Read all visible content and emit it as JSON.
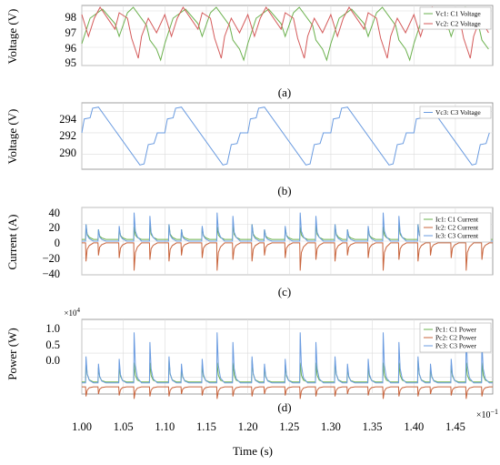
{
  "figure": {
    "xlabel": "Time (s)",
    "x_ticks": [
      "1.00",
      "1.05",
      "1.10",
      "1.15",
      "1.20",
      "1.25",
      "1.30",
      "1.35",
      "1.40",
      "1.45"
    ],
    "x_exponent": "×10",
    "x_exponent_power": "−1"
  },
  "chart_data": [
    {
      "type": "line",
      "panel": "(a)",
      "ylabel": "Voltage (V)",
      "ylim": [
        95,
        98.3
      ],
      "yticks": [
        "98",
        "97",
        "96",
        "95"
      ],
      "xlim": [
        0.1,
        0.1495
      ],
      "grid": true,
      "legend_position": "top-right",
      "series": [
        {
          "name": "Vc1: C1 Voltage",
          "color": "#6ab04c",
          "period": 0.01,
          "peaks_at": [
            0.1005,
            0.1025,
            0.1045,
            0.1062,
            0.1082
          ],
          "waveform": [
            [
              0.0,
              96.2
            ],
            [
              0.001,
              97.6
            ],
            [
              0.0025,
              98.1
            ],
            [
              0.004,
              97.3
            ],
            [
              0.0045,
              96.6
            ],
            [
              0.0055,
              97.9
            ],
            [
              0.0062,
              98.2
            ],
            [
              0.0078,
              97.2
            ],
            [
              0.0082,
              96.4
            ],
            [
              0.009,
              95.9
            ],
            [
              0.0095,
              95.3
            ],
            [
              0.01,
              96.2
            ]
          ]
        },
        {
          "name": "Vc2: C2 Voltage",
          "color": "#d45a5a",
          "period": 0.01,
          "waveform": [
            [
              0.0,
              97.8
            ],
            [
              0.0008,
              96.6
            ],
            [
              0.0015,
              97.6
            ],
            [
              0.0022,
              98.2
            ],
            [
              0.004,
              97.0
            ],
            [
              0.0045,
              97.9
            ],
            [
              0.0055,
              97.6
            ],
            [
              0.006,
              96.5
            ],
            [
              0.0068,
              95.4
            ],
            [
              0.0072,
              96.6
            ],
            [
              0.008,
              97.6
            ],
            [
              0.009,
              96.8
            ],
            [
              0.01,
              97.8
            ]
          ]
        }
      ]
    },
    {
      "type": "line",
      "panel": "(b)",
      "ylabel": "Voltage (V)",
      "ylim": [
        288.6,
        294.8
      ],
      "yticks": [
        "294",
        "292",
        "290"
      ],
      "xlim": [
        0.1,
        0.1495
      ],
      "grid": true,
      "legend_position": "top-right",
      "series": [
        {
          "name": "Vc3: C3 Voltage",
          "color": "#6a9be0",
          "period": 0.01,
          "waveform": [
            [
              0.0,
              292.0
            ],
            [
              0.0003,
              293.3
            ],
            [
              0.001,
              293.4
            ],
            [
              0.0013,
              294.3
            ],
            [
              0.002,
              294.4
            ],
            [
              0.007,
              289.0
            ],
            [
              0.0075,
              289.1
            ],
            [
              0.008,
              290.9
            ],
            [
              0.0087,
              291.0
            ],
            [
              0.0091,
              292.0
            ],
            [
              0.01,
              292.0
            ]
          ]
        }
      ]
    },
    {
      "type": "line",
      "panel": "(c)",
      "ylabel": "Current (A)",
      "ylim": [
        -40,
        40
      ],
      "yticks": [
        "40",
        "20",
        "0",
        "−20",
        "−40"
      ],
      "xlim": [
        0.1,
        0.1495
      ],
      "grid": true,
      "legend_position": "top-right",
      "series": [
        {
          "name": "Ic1: C1 Current",
          "color": "#6ab04c"
        },
        {
          "name": "Ic2: C2 Current",
          "color": "#c8643c"
        },
        {
          "name": "Ic3: C3 Current",
          "color": "#6a9be0"
        }
      ],
      "event_offsets_in_period": [
        0.0005,
        0.002,
        0.0045,
        0.0063,
        0.0082
      ],
      "event_amplitudes": {
        "Ic1": [
          18,
          12,
          14,
          15,
          17
        ],
        "Ic2": [
          -22,
          -15,
          -18,
          -33,
          -20
        ],
        "Ic3": [
          20,
          14,
          18,
          34,
          30
        ]
      }
    },
    {
      "type": "line",
      "panel": "(d)",
      "ylabel": "Power (W)",
      "y_exponent": "×10",
      "y_exponent_power": "4",
      "ylim": [
        -0.35,
        1.2
      ],
      "yticks": [
        "1.0",
        "0.5",
        "0.0"
      ],
      "xlim": [
        0.1,
        0.1495
      ],
      "grid": true,
      "legend_position": "top-right",
      "series": [
        {
          "name": "Pc1: C1  Power",
          "color": "#6ab04c"
        },
        {
          "name": "Pc2: C2  Power",
          "color": "#c8643c"
        },
        {
          "name": "Pc3: C3  Power",
          "color": "#6a9be0"
        }
      ],
      "event_offsets_in_period": [
        0.0005,
        0.002,
        0.0045,
        0.0063,
        0.0082
      ],
      "event_amplitudes": {
        "Pc1": [
          0.45,
          0.3,
          0.35,
          0.4,
          0.4
        ],
        "Pc2": [
          -0.2,
          -0.15,
          -0.18,
          -0.25,
          -0.2
        ],
        "Pc3": [
          0.55,
          0.4,
          0.5,
          1.05,
          0.85
        ]
      }
    }
  ]
}
